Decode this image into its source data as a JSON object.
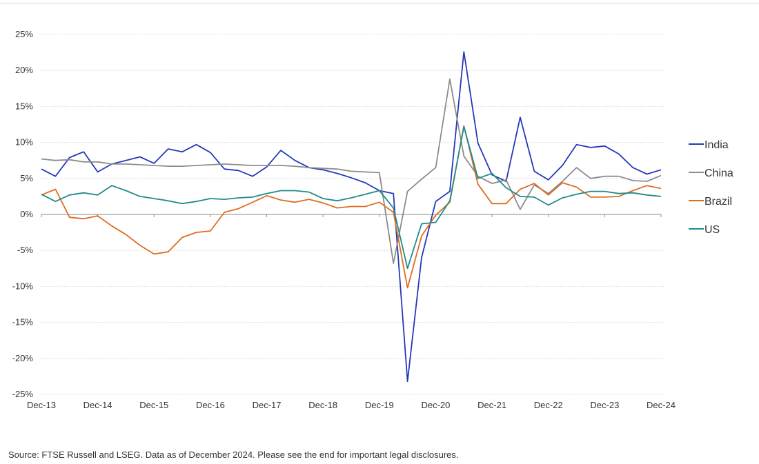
{
  "chart_data": {
    "type": "line",
    "title": "",
    "xlabel": "",
    "ylabel": "",
    "ylim": [
      -25,
      25
    ],
    "y_ticks": [
      "25%",
      "20%",
      "15%",
      "10%",
      "5%",
      "0%",
      "-5%",
      "-10%",
      "-15%",
      "-20%",
      "-25%"
    ],
    "x_ticks": [
      "Dec-13",
      "Dec-14",
      "Dec-15",
      "Dec-16",
      "Dec-17",
      "Dec-18",
      "Dec-19",
      "Dec-20",
      "Dec-21",
      "Dec-22",
      "Dec-23",
      "Dec-24"
    ],
    "x": [
      "Dec-13",
      "Mar-14",
      "Jun-14",
      "Sep-14",
      "Dec-14",
      "Mar-15",
      "Jun-15",
      "Sep-15",
      "Dec-15",
      "Mar-16",
      "Jun-16",
      "Sep-16",
      "Dec-16",
      "Mar-17",
      "Jun-17",
      "Sep-17",
      "Dec-17",
      "Mar-18",
      "Jun-18",
      "Sep-18",
      "Dec-18",
      "Mar-19",
      "Jun-19",
      "Sep-19",
      "Dec-19",
      "Mar-20",
      "Jun-20",
      "Sep-20",
      "Dec-20",
      "Mar-21",
      "Jun-21",
      "Sep-21",
      "Dec-21",
      "Mar-22",
      "Jun-22",
      "Sep-22",
      "Dec-22",
      "Mar-23",
      "Jun-23",
      "Sep-23",
      "Dec-23",
      "Mar-24",
      "Jun-24",
      "Sep-24",
      "Dec-24"
    ],
    "grid": true,
    "legend_position": "right",
    "series": [
      {
        "name": "India",
        "color": "#2338b8",
        "values": [
          6.3,
          5.3,
          7.9,
          8.7,
          5.9,
          7.0,
          7.5,
          8.0,
          7.1,
          9.1,
          8.7,
          9.7,
          8.6,
          6.3,
          6.1,
          5.3,
          6.6,
          8.9,
          7.5,
          6.5,
          6.2,
          5.7,
          5.1,
          4.4,
          3.3,
          2.9,
          -23.2,
          -6.0,
          1.8,
          3.2,
          22.6,
          9.9,
          5.5,
          4.6,
          13.5,
          6.0,
          4.8,
          6.8,
          9.7,
          9.3,
          9.5,
          8.4,
          6.5,
          5.6,
          6.2
        ]
      },
      {
        "name": "China",
        "color": "#8c8c8c",
        "values": [
          7.7,
          7.5,
          7.6,
          7.3,
          7.3,
          7.0,
          7.0,
          6.9,
          6.8,
          6.7,
          6.7,
          6.8,
          6.9,
          7.0,
          6.9,
          6.8,
          6.8,
          6.8,
          6.7,
          6.5,
          6.4,
          6.3,
          6.0,
          5.9,
          5.8,
          -6.8,
          3.2,
          4.9,
          6.5,
          18.8,
          8.1,
          5.3,
          4.3,
          4.8,
          0.7,
          4.1,
          2.9,
          4.6,
          6.5,
          5.0,
          5.3,
          5.3,
          4.7,
          4.6,
          5.4
        ]
      },
      {
        "name": "Brazil",
        "color": "#e06c22",
        "values": [
          2.7,
          3.5,
          -0.4,
          -0.6,
          -0.2,
          -1.6,
          -2.8,
          -4.3,
          -5.5,
          -5.2,
          -3.2,
          -2.5,
          -2.3,
          0.3,
          0.8,
          1.7,
          2.6,
          2.0,
          1.7,
          2.1,
          1.6,
          0.9,
          1.1,
          1.1,
          1.7,
          0.3,
          -10.2,
          -3.0,
          -0.1,
          1.7,
          12.3,
          4.2,
          1.5,
          1.5,
          3.5,
          4.3,
          2.7,
          4.4,
          3.8,
          2.4,
          2.4,
          2.5,
          3.3,
          4.0,
          3.6
        ]
      },
      {
        "name": "US",
        "color": "#208a8a",
        "values": [
          2.8,
          1.8,
          2.7,
          3.0,
          2.7,
          4.0,
          3.3,
          2.5,
          2.2,
          1.9,
          1.5,
          1.8,
          2.2,
          2.1,
          2.3,
          2.4,
          2.9,
          3.3,
          3.3,
          3.1,
          2.2,
          1.9,
          2.3,
          2.8,
          3.3,
          0.9,
          -7.5,
          -1.3,
          -1.1,
          1.9,
          12.2,
          5.0,
          5.7,
          3.7,
          2.5,
          2.4,
          1.3,
          2.3,
          2.8,
          3.2,
          3.2,
          2.9,
          3.0,
          2.7,
          2.5
        ]
      }
    ]
  },
  "footer": {
    "source": "Source: FTSE Russell and LSEG. Data as of December 2024. Please see the end for important legal disclosures."
  }
}
